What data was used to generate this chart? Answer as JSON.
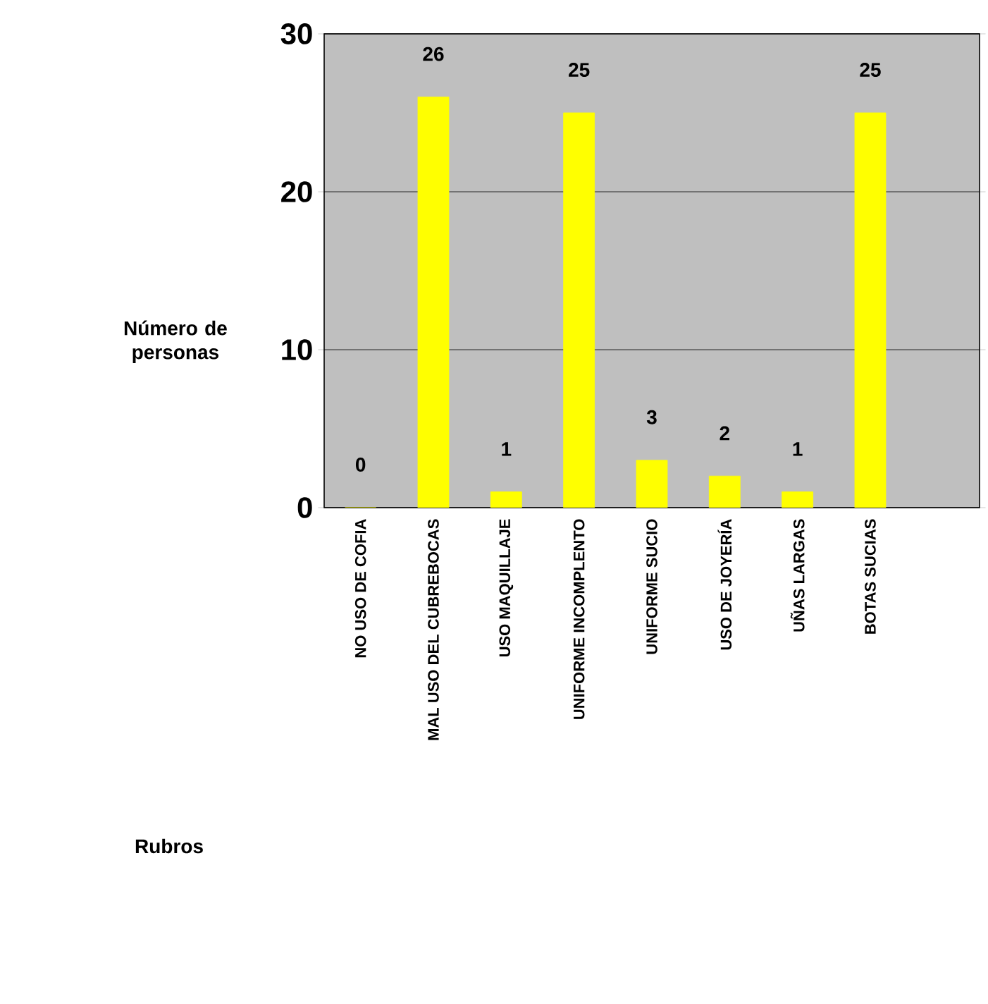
{
  "chart_data": {
    "type": "bar",
    "ylabel": "Número de personas",
    "annotations": [
      "Rubros"
    ],
    "categories": [
      "NO USO DE COFIA",
      "MAL USO DEL CUBREBOCAS",
      "USO MAQUILLAJE",
      "UNIFORME INCOMPLENTO",
      "UNIFORME SUCIO",
      "USO DE JOYERÍA",
      "UÑAS LARGAS",
      "BOTAS SUCIAS",
      null
    ],
    "values": [
      0,
      26,
      1,
      25,
      3,
      2,
      1,
      25,
      null
    ],
    "color": "#ffff00",
    "ylim": [
      0,
      30
    ],
    "yticks": [
      0,
      10,
      20,
      30
    ],
    "grid": "y",
    "data_labels": true
  }
}
